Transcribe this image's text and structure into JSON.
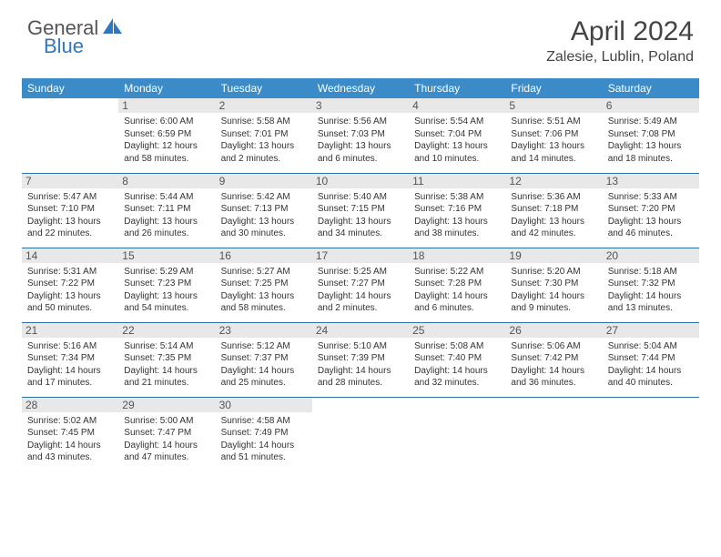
{
  "logo": {
    "line1": "General",
    "line2": "Blue"
  },
  "title": "April 2024",
  "location": "Zalesie, Lublin, Poland",
  "colors": {
    "header_bg": "#3b8bc9",
    "header_text": "#ffffff",
    "daynum_bg": "#e8e8e8",
    "row_separator": "#2f6fa8",
    "logo_accent": "#2f78bf",
    "text": "#333333"
  },
  "day_headers": [
    "Sunday",
    "Monday",
    "Tuesday",
    "Wednesday",
    "Thursday",
    "Friday",
    "Saturday"
  ],
  "weeks": [
    [
      {
        "num": "",
        "sunrise": "",
        "sunset": "",
        "daylight1": "",
        "daylight2": ""
      },
      {
        "num": "1",
        "sunrise": "Sunrise: 6:00 AM",
        "sunset": "Sunset: 6:59 PM",
        "daylight1": "Daylight: 12 hours",
        "daylight2": "and 58 minutes."
      },
      {
        "num": "2",
        "sunrise": "Sunrise: 5:58 AM",
        "sunset": "Sunset: 7:01 PM",
        "daylight1": "Daylight: 13 hours",
        "daylight2": "and 2 minutes."
      },
      {
        "num": "3",
        "sunrise": "Sunrise: 5:56 AM",
        "sunset": "Sunset: 7:03 PM",
        "daylight1": "Daylight: 13 hours",
        "daylight2": "and 6 minutes."
      },
      {
        "num": "4",
        "sunrise": "Sunrise: 5:54 AM",
        "sunset": "Sunset: 7:04 PM",
        "daylight1": "Daylight: 13 hours",
        "daylight2": "and 10 minutes."
      },
      {
        "num": "5",
        "sunrise": "Sunrise: 5:51 AM",
        "sunset": "Sunset: 7:06 PM",
        "daylight1": "Daylight: 13 hours",
        "daylight2": "and 14 minutes."
      },
      {
        "num": "6",
        "sunrise": "Sunrise: 5:49 AM",
        "sunset": "Sunset: 7:08 PM",
        "daylight1": "Daylight: 13 hours",
        "daylight2": "and 18 minutes."
      }
    ],
    [
      {
        "num": "7",
        "sunrise": "Sunrise: 5:47 AM",
        "sunset": "Sunset: 7:10 PM",
        "daylight1": "Daylight: 13 hours",
        "daylight2": "and 22 minutes."
      },
      {
        "num": "8",
        "sunrise": "Sunrise: 5:44 AM",
        "sunset": "Sunset: 7:11 PM",
        "daylight1": "Daylight: 13 hours",
        "daylight2": "and 26 minutes."
      },
      {
        "num": "9",
        "sunrise": "Sunrise: 5:42 AM",
        "sunset": "Sunset: 7:13 PM",
        "daylight1": "Daylight: 13 hours",
        "daylight2": "and 30 minutes."
      },
      {
        "num": "10",
        "sunrise": "Sunrise: 5:40 AM",
        "sunset": "Sunset: 7:15 PM",
        "daylight1": "Daylight: 13 hours",
        "daylight2": "and 34 minutes."
      },
      {
        "num": "11",
        "sunrise": "Sunrise: 5:38 AM",
        "sunset": "Sunset: 7:16 PM",
        "daylight1": "Daylight: 13 hours",
        "daylight2": "and 38 minutes."
      },
      {
        "num": "12",
        "sunrise": "Sunrise: 5:36 AM",
        "sunset": "Sunset: 7:18 PM",
        "daylight1": "Daylight: 13 hours",
        "daylight2": "and 42 minutes."
      },
      {
        "num": "13",
        "sunrise": "Sunrise: 5:33 AM",
        "sunset": "Sunset: 7:20 PM",
        "daylight1": "Daylight: 13 hours",
        "daylight2": "and 46 minutes."
      }
    ],
    [
      {
        "num": "14",
        "sunrise": "Sunrise: 5:31 AM",
        "sunset": "Sunset: 7:22 PM",
        "daylight1": "Daylight: 13 hours",
        "daylight2": "and 50 minutes."
      },
      {
        "num": "15",
        "sunrise": "Sunrise: 5:29 AM",
        "sunset": "Sunset: 7:23 PM",
        "daylight1": "Daylight: 13 hours",
        "daylight2": "and 54 minutes."
      },
      {
        "num": "16",
        "sunrise": "Sunrise: 5:27 AM",
        "sunset": "Sunset: 7:25 PM",
        "daylight1": "Daylight: 13 hours",
        "daylight2": "and 58 minutes."
      },
      {
        "num": "17",
        "sunrise": "Sunrise: 5:25 AM",
        "sunset": "Sunset: 7:27 PM",
        "daylight1": "Daylight: 14 hours",
        "daylight2": "and 2 minutes."
      },
      {
        "num": "18",
        "sunrise": "Sunrise: 5:22 AM",
        "sunset": "Sunset: 7:28 PM",
        "daylight1": "Daylight: 14 hours",
        "daylight2": "and 6 minutes."
      },
      {
        "num": "19",
        "sunrise": "Sunrise: 5:20 AM",
        "sunset": "Sunset: 7:30 PM",
        "daylight1": "Daylight: 14 hours",
        "daylight2": "and 9 minutes."
      },
      {
        "num": "20",
        "sunrise": "Sunrise: 5:18 AM",
        "sunset": "Sunset: 7:32 PM",
        "daylight1": "Daylight: 14 hours",
        "daylight2": "and 13 minutes."
      }
    ],
    [
      {
        "num": "21",
        "sunrise": "Sunrise: 5:16 AM",
        "sunset": "Sunset: 7:34 PM",
        "daylight1": "Daylight: 14 hours",
        "daylight2": "and 17 minutes."
      },
      {
        "num": "22",
        "sunrise": "Sunrise: 5:14 AM",
        "sunset": "Sunset: 7:35 PM",
        "daylight1": "Daylight: 14 hours",
        "daylight2": "and 21 minutes."
      },
      {
        "num": "23",
        "sunrise": "Sunrise: 5:12 AM",
        "sunset": "Sunset: 7:37 PM",
        "daylight1": "Daylight: 14 hours",
        "daylight2": "and 25 minutes."
      },
      {
        "num": "24",
        "sunrise": "Sunrise: 5:10 AM",
        "sunset": "Sunset: 7:39 PM",
        "daylight1": "Daylight: 14 hours",
        "daylight2": "and 28 minutes."
      },
      {
        "num": "25",
        "sunrise": "Sunrise: 5:08 AM",
        "sunset": "Sunset: 7:40 PM",
        "daylight1": "Daylight: 14 hours",
        "daylight2": "and 32 minutes."
      },
      {
        "num": "26",
        "sunrise": "Sunrise: 5:06 AM",
        "sunset": "Sunset: 7:42 PM",
        "daylight1": "Daylight: 14 hours",
        "daylight2": "and 36 minutes."
      },
      {
        "num": "27",
        "sunrise": "Sunrise: 5:04 AM",
        "sunset": "Sunset: 7:44 PM",
        "daylight1": "Daylight: 14 hours",
        "daylight2": "and 40 minutes."
      }
    ],
    [
      {
        "num": "28",
        "sunrise": "Sunrise: 5:02 AM",
        "sunset": "Sunset: 7:45 PM",
        "daylight1": "Daylight: 14 hours",
        "daylight2": "and 43 minutes."
      },
      {
        "num": "29",
        "sunrise": "Sunrise: 5:00 AM",
        "sunset": "Sunset: 7:47 PM",
        "daylight1": "Daylight: 14 hours",
        "daylight2": "and 47 minutes."
      },
      {
        "num": "30",
        "sunrise": "Sunrise: 4:58 AM",
        "sunset": "Sunset: 7:49 PM",
        "daylight1": "Daylight: 14 hours",
        "daylight2": "and 51 minutes."
      },
      {
        "num": "",
        "sunrise": "",
        "sunset": "",
        "daylight1": "",
        "daylight2": ""
      },
      {
        "num": "",
        "sunrise": "",
        "sunset": "",
        "daylight1": "",
        "daylight2": ""
      },
      {
        "num": "",
        "sunrise": "",
        "sunset": "",
        "daylight1": "",
        "daylight2": ""
      },
      {
        "num": "",
        "sunrise": "",
        "sunset": "",
        "daylight1": "",
        "daylight2": ""
      }
    ]
  ]
}
